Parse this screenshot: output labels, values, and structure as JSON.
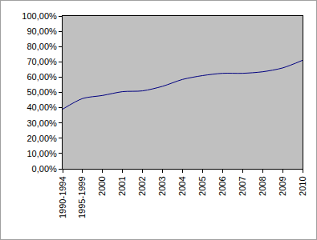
{
  "chart_data": {
    "type": "line",
    "categories": [
      "1990-1994",
      "1995-1999",
      "2000",
      "2001",
      "2002",
      "2003",
      "2004",
      "2005",
      "2006",
      "2007",
      "2008",
      "2009",
      "2010"
    ],
    "values": [
      39,
      46,
      48,
      50.5,
      51,
      54,
      58.5,
      61,
      62.5,
      62.5,
      63.5,
      66,
      71
    ],
    "color": "#000080",
    "ylim": [
      0,
      100
    ],
    "yticks": [
      {
        "value": 0,
        "label": "0,00%"
      },
      {
        "value": 10,
        "label": "10,00%"
      },
      {
        "value": 20,
        "label": "20,00%"
      },
      {
        "value": 30,
        "label": "30,00%"
      },
      {
        "value": 40,
        "label": "40,00%"
      },
      {
        "value": 50,
        "label": "50,00%"
      },
      {
        "value": 60,
        "label": "60,00%"
      },
      {
        "value": 70,
        "label": "70,00%"
      },
      {
        "value": 80,
        "label": "80,00%"
      },
      {
        "value": 90,
        "label": "90,00%"
      },
      {
        "value": 100,
        "label": "100,00%"
      }
    ],
    "grid": false
  }
}
